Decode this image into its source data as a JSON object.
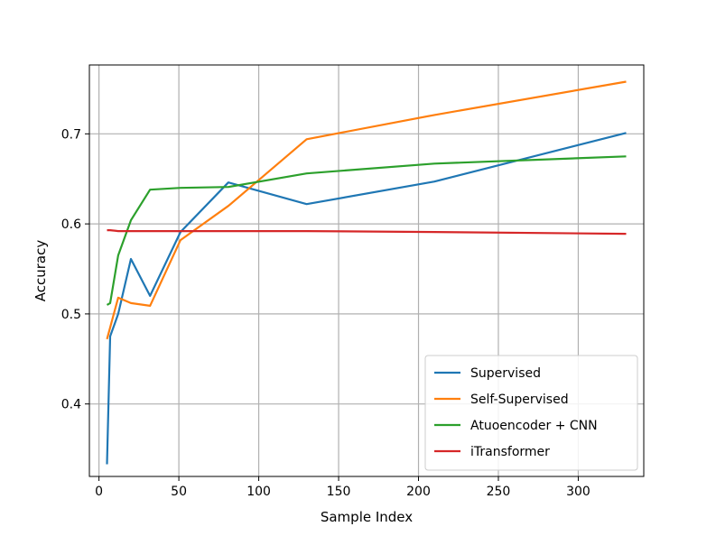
{
  "chart_data": {
    "type": "line",
    "title": "",
    "xlabel": "Sample Index",
    "ylabel": "Accuracy",
    "xlim": [
      -6,
      341
    ],
    "ylim": [
      0.3195,
      0.7765
    ],
    "xticks": [
      0,
      50,
      100,
      150,
      200,
      250,
      300
    ],
    "yticks": [
      0.4,
      0.5,
      0.6,
      0.7
    ],
    "ytick_labels": [
      "0.4",
      "0.5",
      "0.6",
      "0.7"
    ],
    "grid": true,
    "legend_position": "lower-right",
    "series": [
      {
        "name": "Supervised",
        "color": "#1f77b4",
        "x": [
          5,
          7,
          12,
          20,
          32,
          51,
          81,
          130,
          210,
          330
        ],
        "y": [
          0.333,
          0.475,
          0.5,
          0.561,
          0.52,
          0.591,
          0.646,
          0.622,
          0.647,
          0.701
        ]
      },
      {
        "name": "Self-Supervised",
        "color": "#ff7f0e",
        "x": [
          5,
          7,
          12,
          20,
          32,
          51,
          81,
          130,
          210,
          330
        ],
        "y": [
          0.472,
          0.485,
          0.518,
          0.512,
          0.509,
          0.582,
          0.62,
          0.694,
          0.721,
          0.758
        ]
      },
      {
        "name": "Atuoencoder + CNN",
        "color": "#2ca02c",
        "x": [
          5,
          7,
          12,
          20,
          32,
          51,
          81,
          130,
          210,
          330
        ],
        "y": [
          0.51,
          0.512,
          0.565,
          0.604,
          0.638,
          0.64,
          0.641,
          0.656,
          0.667,
          0.675
        ]
      },
      {
        "name": "iTransformer",
        "color": "#d62728",
        "x": [
          5,
          7,
          12,
          20,
          32,
          51,
          81,
          130,
          210,
          330
        ],
        "y": [
          0.593,
          0.593,
          0.592,
          0.592,
          0.592,
          0.592,
          0.592,
          0.592,
          0.591,
          0.589
        ]
      }
    ]
  }
}
